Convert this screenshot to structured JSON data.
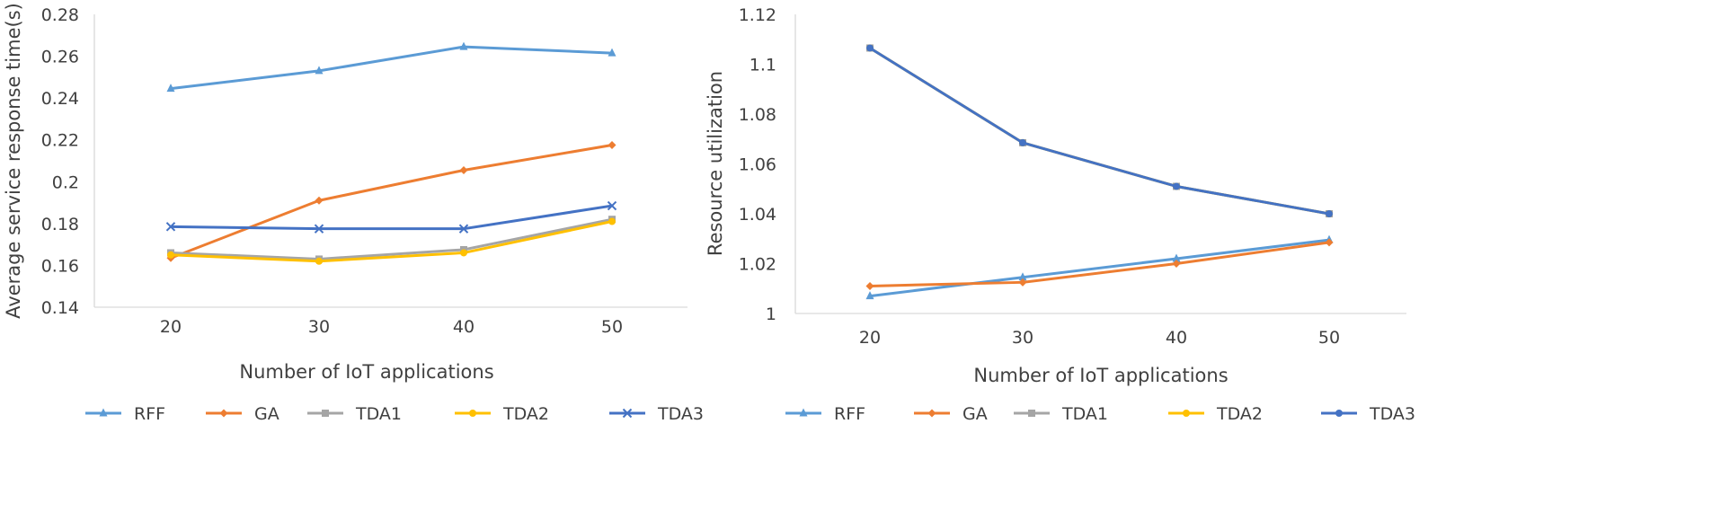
{
  "chart_data": [
    {
      "type": "line",
      "title": "",
      "xlabel": "Number of IoT applications",
      "ylabel": "Average service response time(s)",
      "x": [
        20,
        30,
        40,
        50
      ],
      "ylim": [
        0.14,
        0.28
      ],
      "yticks": [
        "0.14",
        "0.16",
        "0.18",
        "0.2",
        "0.22",
        "0.24",
        "0.26",
        "0.28"
      ],
      "xticks": [
        "20",
        "30",
        "40",
        "50"
      ],
      "grid": false,
      "legend": "bottom",
      "series": [
        {
          "name": "RFF",
          "values": [
            0.2445,
            0.253,
            0.2645,
            0.2615
          ],
          "color": "#5B9BD5",
          "marker": "triangle"
        },
        {
          "name": "GA",
          "values": [
            0.1635,
            0.191,
            0.2055,
            0.2175
          ],
          "color": "#ED7D31",
          "marker": "diamond"
        },
        {
          "name": "TDA1",
          "values": [
            0.166,
            0.163,
            0.1675,
            0.182
          ],
          "color": "#A5A5A5",
          "marker": "square"
        },
        {
          "name": "TDA2",
          "values": [
            0.165,
            0.162,
            0.166,
            0.181
          ],
          "color": "#FFC000",
          "marker": "circle"
        },
        {
          "name": "TDA3",
          "values": [
            0.1785,
            0.1775,
            0.1775,
            0.1885
          ],
          "color": "#4472C4",
          "marker": "x"
        }
      ]
    },
    {
      "type": "line",
      "title": "",
      "xlabel": "Number of IoT applications",
      "ylabel": "Resource utilization",
      "x": [
        20,
        30,
        40,
        50
      ],
      "ylim": [
        1.0,
        1.12
      ],
      "yticks": [
        "1",
        "1.02",
        "1.04",
        "1.06",
        "1.08",
        "1.1",
        "1.12"
      ],
      "xticks": [
        "20",
        "30",
        "40",
        "50"
      ],
      "grid": false,
      "legend": "bottom",
      "series": [
        {
          "name": "RFF",
          "values": [
            1.007,
            1.0145,
            1.022,
            1.0295
          ],
          "color": "#5B9BD5",
          "marker": "triangle"
        },
        {
          "name": "GA",
          "values": [
            1.011,
            1.0125,
            1.02,
            1.0285
          ],
          "color": "#ED7D31",
          "marker": "diamond"
        },
        {
          "name": "TDA1",
          "values": [
            1.1065,
            1.0685,
            1.051,
            1.04
          ],
          "color": "#A5A5A5",
          "marker": "square"
        },
        {
          "name": "TDA2",
          "values": [
            1.1065,
            1.0685,
            1.051,
            1.04
          ],
          "color": "#FFC000",
          "marker": "circle"
        },
        {
          "name": "TDA3",
          "values": [
            1.1065,
            1.0685,
            1.051,
            1.04
          ],
          "color": "#4472C4",
          "marker": "circle"
        }
      ]
    }
  ]
}
